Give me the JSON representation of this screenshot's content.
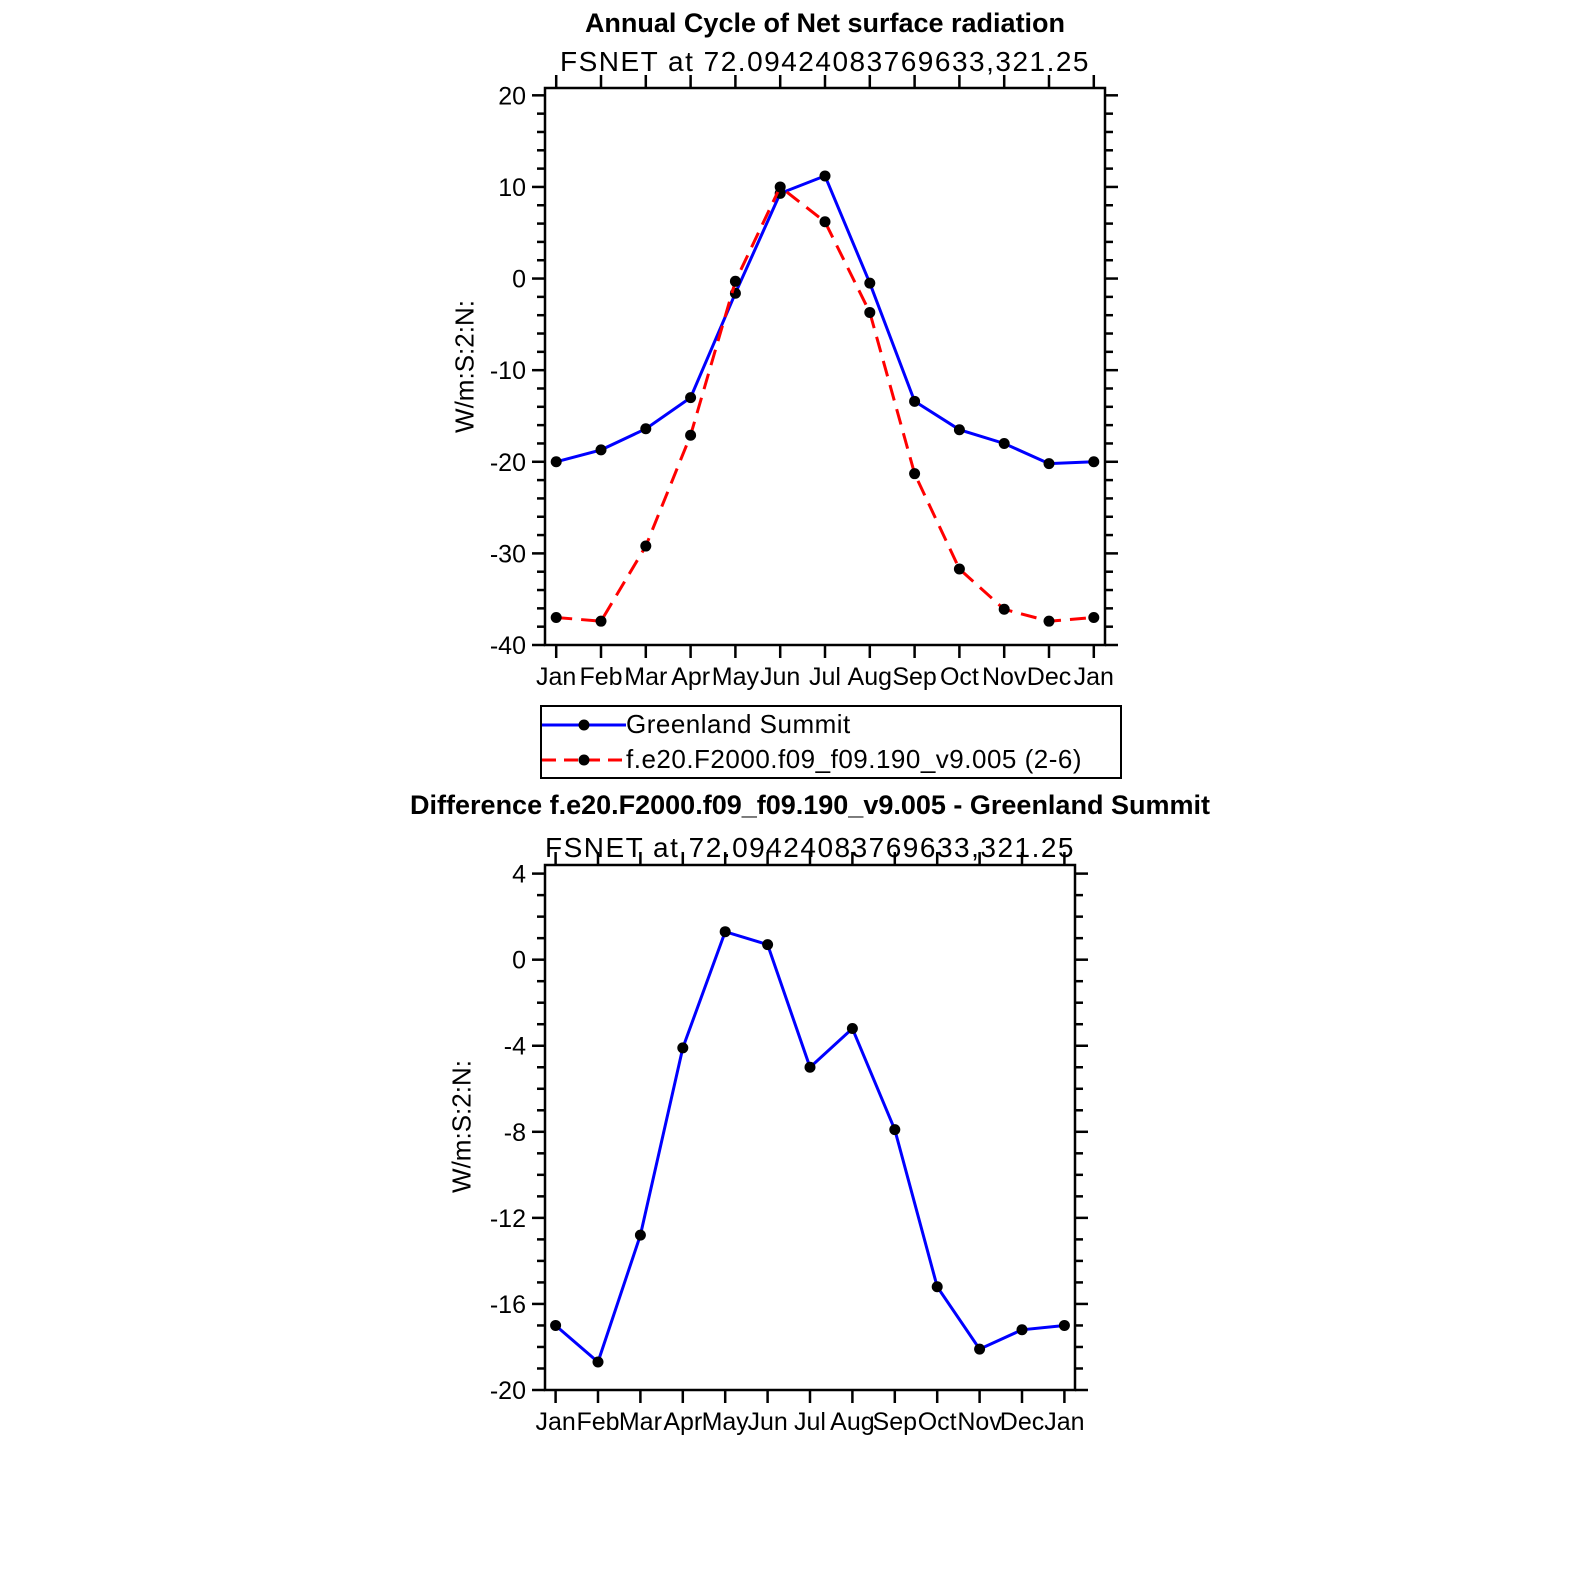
{
  "chart_data": [
    {
      "type": "line",
      "title": "Annual Cycle of Net surface radiation",
      "subtitle": "FSNET at 72.09424083769633,321.25",
      "ylabel": "W/m:S:2:N:",
      "categories": [
        "Jan",
        "Feb",
        "Mar",
        "Apr",
        "May",
        "Jun",
        "Jul",
        "Aug",
        "Sep",
        "Oct",
        "Nov",
        "Dec",
        "Jan"
      ],
      "xlim": [
        -0.25,
        12.25
      ],
      "ylim": [
        -40,
        20.8
      ],
      "yticks": [
        -40,
        -30,
        -20,
        -10,
        0,
        10,
        20
      ],
      "yminor_step": 2,
      "grid": false,
      "legend_position": "below",
      "marker": {
        "shape": "circle",
        "color": "#000000"
      },
      "series": [
        {
          "name": "Greenland Summit",
          "color": "#0000ff",
          "dash": "solid",
          "values": [
            -20.0,
            -18.7,
            -16.4,
            -13.0,
            -1.6,
            9.3,
            11.2,
            -0.5,
            -13.4,
            -16.5,
            -18.0,
            -20.2,
            -20.0
          ]
        },
        {
          "name": "f.e20.F2000.f09_f09.190_v9.005 (2-6)",
          "color": "#ff0000",
          "dash": "dashed",
          "values": [
            -37.0,
            -37.4,
            -29.2,
            -17.1,
            -0.3,
            10.0,
            6.2,
            -3.7,
            -21.3,
            -31.7,
            -36.1,
            -37.4,
            -37.0
          ]
        }
      ]
    },
    {
      "type": "line",
      "title": "Difference f.e20.F2000.f09_f09.190_v9.005 - Greenland Summit",
      "subtitle": "FSNET at 72.09424083769633,321.25",
      "ylabel": "W/m:S:2:N:",
      "categories": [
        "Jan",
        "Feb",
        "Mar",
        "Apr",
        "May",
        "Jun",
        "Jul",
        "Aug",
        "Sep",
        "Oct",
        "Nov",
        "Dec",
        "Jan"
      ],
      "xlim": [
        -0.25,
        12.25
      ],
      "ylim": [
        -20,
        4.4
      ],
      "yticks": [
        -20,
        -16,
        -12,
        -8,
        -4,
        0,
        4
      ],
      "yminor_step": 1,
      "grid": false,
      "legend_position": "none",
      "marker": {
        "shape": "circle",
        "color": "#000000"
      },
      "series": [
        {
          "name": "Difference",
          "color": "#0000ff",
          "dash": "solid",
          "values": [
            -17.0,
            -18.7,
            -12.8,
            -4.1,
            1.3,
            0.7,
            -5.0,
            -3.2,
            -7.9,
            -15.2,
            -18.1,
            -17.2,
            -17.0
          ]
        }
      ]
    }
  ]
}
